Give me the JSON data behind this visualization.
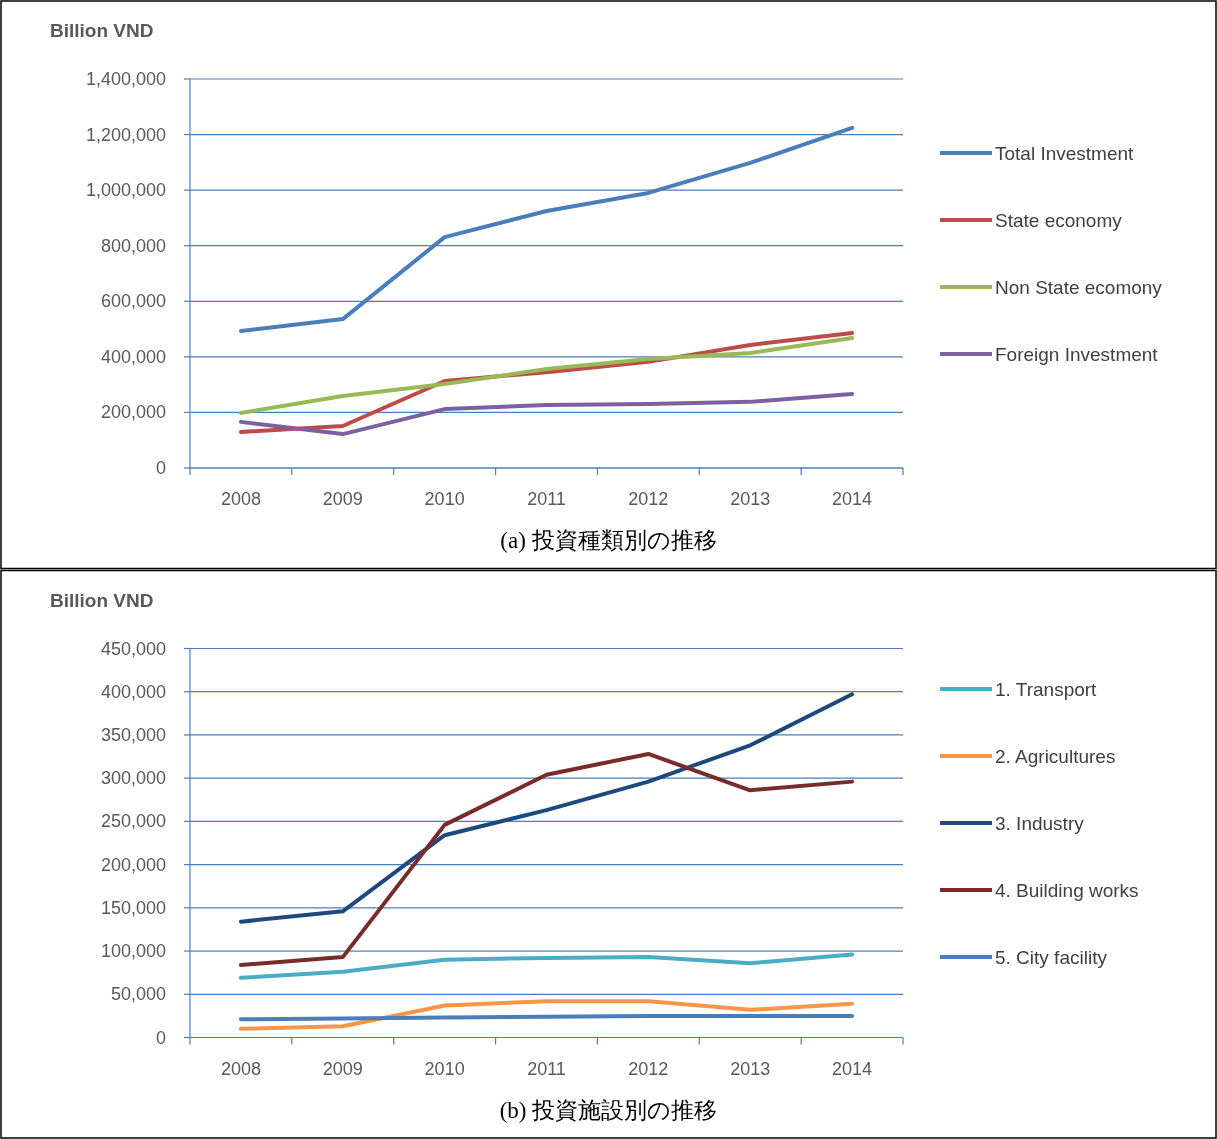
{
  "chart_data": [
    {
      "type": "line",
      "title": "(a) 投資種類別の推移",
      "ylabel": "Billion VND",
      "categories": [
        "2008",
        "2009",
        "2010",
        "2011",
        "2012",
        "2013",
        "2014"
      ],
      "ylim": [
        0,
        1400000
      ],
      "yticks": [
        0,
        {
          "value": 200000,
          "label": "200,000"
        },
        {
          "value": 400000,
          "label": "400,000"
        },
        {
          "value": 600000,
          "label": "600,000"
        },
        {
          "value": 800000,
          "label": "800,000"
        },
        {
          "value": 1000000,
          "label": "1,000,000"
        },
        {
          "value": 1200000,
          "label": "1,200,000"
        },
        {
          "value": 1400000,
          "label": "1,400,000"
        }
      ],
      "grid": "y",
      "legend": "right",
      "series": [
        {
          "name": "Total Investment",
          "color": "#4a7ebb",
          "values": [
            493000,
            536000,
            831000,
            925000,
            990000,
            1098000,
            1224000
          ]
        },
        {
          "name": "State economy",
          "color": "#be4b48",
          "values": [
            130000,
            151000,
            313000,
            345000,
            382000,
            443000,
            486000
          ]
        },
        {
          "name": "Non State ecomony",
          "color": "#98b954",
          "values": [
            198000,
            259000,
            302000,
            356000,
            392000,
            414000,
            468000
          ]
        },
        {
          "name": "Foreign Investment",
          "color": "#7d60a0",
          "values": [
            166000,
            122000,
            212000,
            227000,
            230000,
            238000,
            266000
          ]
        }
      ]
    },
    {
      "type": "line",
      "title": "(b) 投資施設別の推移",
      "ylabel": "Billion VND",
      "categories": [
        "2008",
        "2009",
        "2010",
        "2011",
        "2012",
        "2013",
        "2014"
      ],
      "ylim": [
        0,
        450000
      ],
      "yticks": [
        0,
        {
          "value": 50000,
          "label": "50,000"
        },
        {
          "value": 100000,
          "label": "100,000"
        },
        {
          "value": 150000,
          "label": "150,000"
        },
        {
          "value": 200000,
          "label": "200,000"
        },
        {
          "value": 250000,
          "label": "250,000"
        },
        {
          "value": 300000,
          "label": "300,000"
        },
        {
          "value": 350000,
          "label": "350,000"
        },
        {
          "value": 400000,
          "label": "400,000"
        },
        {
          "value": 450000,
          "label": "450,000"
        }
      ],
      "grid": "y",
      "legend": "right",
      "series": [
        {
          "name": "1. Transport",
          "color": "#4bacc6",
          "values": [
            69000,
            76000,
            90000,
            92000,
            93000,
            86000,
            96000
          ]
        },
        {
          "name": "2. Agricultures",
          "color": "#f79646",
          "values": [
            10000,
            13000,
            37000,
            42000,
            42000,
            32000,
            39000
          ]
        },
        {
          "name": "3. Industry",
          "color": "#1f497d",
          "values": [
            134000,
            146000,
            234000,
            263000,
            296000,
            338000,
            397000
          ]
        },
        {
          "name": "4. Building works",
          "color": "#772c2a",
          "values": [
            84000,
            93000,
            246000,
            304000,
            328000,
            286000,
            296000
          ]
        },
        {
          "name": "5. City facility",
          "color": "#4a7ebb",
          "values": [
            21000,
            22000,
            23000,
            24000,
            25000,
            25000,
            25000
          ]
        }
      ]
    }
  ]
}
